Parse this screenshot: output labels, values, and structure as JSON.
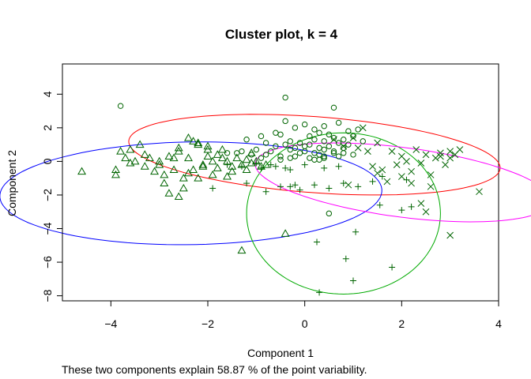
{
  "chart_data": {
    "type": "scatter",
    "title": "Cluster plot, k = 4",
    "xlabel": "Component 1",
    "ylabel": "Component 2",
    "footnote": "These two components explain 58.87 % of the point variability.",
    "xlim": [
      -5.0,
      4.0
    ],
    "ylim": [
      -8.3,
      5.8
    ],
    "xticks": [
      -4,
      -2,
      0,
      2,
      4
    ],
    "yticks": [
      4,
      2,
      0,
      -2,
      -4,
      -6,
      -8
    ],
    "point_color": "#006400",
    "legend": "none",
    "grid": false,
    "ellipses": [
      {
        "cluster": 1,
        "color": "#ff0000",
        "center": [
          0.2,
          0.4
        ],
        "semi_axes": [
          3.95,
          2.2
        ],
        "rotation_deg": -17
      },
      {
        "cluster": 2,
        "color": "#0000ff",
        "center": [
          -2.35,
          -1.9
        ],
        "semi_axes": [
          3.95,
          3.05
        ],
        "rotation_deg": 6
      },
      {
        "cluster": 3,
        "color": "#00aa00",
        "center": [
          0.8,
          -3.1
        ],
        "semi_axes": [
          2.0,
          4.8
        ],
        "rotation_deg": 0
      },
      {
        "cluster": 4,
        "color": "#ff00ff",
        "center": [
          2.03,
          -1.25
        ],
        "semi_axes": [
          1.9,
          3.35
        ],
        "rotation_deg": 60
      }
    ],
    "series": [
      {
        "cluster": 1,
        "marker": "circle",
        "x": [
          -3.8,
          -0.4,
          0.6,
          0.5,
          -0.4,
          -0.2,
          0.0,
          0.2,
          0.4,
          0.7,
          -0.6,
          -0.9,
          -1.2,
          -0.5,
          0.1,
          0.3,
          0.5,
          0.9,
          1.1,
          -0.3,
          -0.1,
          0.2,
          0.4,
          0.6,
          0.8,
          1.0,
          -0.8,
          -0.6,
          -0.4,
          -0.2,
          0.0,
          0.1,
          0.3,
          0.5,
          0.7,
          0.9,
          1.2,
          -1.0,
          -0.7,
          -0.3,
          0.0,
          0.2,
          0.4,
          0.6,
          0.8,
          -1.4,
          -1.1,
          -0.8,
          -0.5,
          -0.1,
          0.3,
          0.6,
          -0.9,
          -0.2,
          0.1,
          0.4,
          0.7,
          1.0,
          0.2,
          0.4,
          -0.5,
          -0.3,
          -1.6,
          -1.3,
          0.8,
          0.3
        ],
        "y": [
          3.3,
          3.8,
          3.2,
          -3.1,
          2.4,
          2.0,
          2.2,
          1.9,
          2.1,
          2.3,
          1.7,
          1.5,
          1.3,
          1.6,
          1.5,
          1.7,
          1.6,
          1.8,
          1.9,
          1.2,
          1.1,
          1.3,
          1.2,
          1.4,
          1.3,
          1.5,
          1.1,
          0.9,
          1.0,
          0.8,
          0.9,
          1.0,
          0.8,
          0.9,
          1.1,
          1.0,
          1.2,
          0.7,
          0.6,
          0.7,
          0.6,
          0.5,
          0.7,
          0.6,
          0.8,
          0.5,
          0.4,
          0.4,
          0.3,
          0.5,
          0.4,
          0.5,
          0.2,
          0.3,
          0.2,
          0.3,
          0.3,
          0.4,
          0.1,
          0.2,
          0.1,
          0.2,
          0.5,
          0.6,
          0.5,
          0.1
        ]
      },
      {
        "cluster": 2,
        "marker": "triangle",
        "x": [
          -4.6,
          -3.9,
          -3.8,
          -3.7,
          -3.6,
          -3.5,
          -3.4,
          -3.3,
          -3.2,
          -3.1,
          -3.0,
          -2.9,
          -2.8,
          -2.7,
          -2.6,
          -2.5,
          -2.4,
          -2.3,
          -2.2,
          -2.1,
          -2.0,
          -1.9,
          -1.8,
          -1.7,
          -1.6,
          -1.5,
          -1.4,
          -1.3,
          -1.2,
          -1.1,
          -1.0,
          -0.9,
          -0.8,
          -3.9,
          -3.6,
          -3.3,
          -3.0,
          -2.7,
          -2.4,
          -2.1,
          -1.8,
          -1.5,
          -1.2,
          -2.9,
          -2.5,
          -2.2,
          -1.9,
          -1.6,
          -2.6,
          -2.3,
          -2.0,
          -1.7,
          -2.6,
          -2.8,
          -0.4,
          -1.3,
          -2.4,
          -2.2,
          -2.0,
          -1.1
        ],
        "y": [
          -0.6,
          -0.8,
          0.6,
          0.2,
          0.7,
          0.0,
          1.0,
          -0.3,
          0.2,
          -0.6,
          0.0,
          -0.8,
          0.3,
          -0.5,
          0.6,
          -1.0,
          0.2,
          -0.5,
          1.0,
          -0.2,
          0.3,
          0.0,
          -0.4,
          0.2,
          0.0,
          -0.3,
          0.2,
          -0.2,
          0.1,
          -0.1,
          0.0,
          -0.3,
          -0.2,
          -0.5,
          -0.1,
          0.4,
          -0.2,
          0.2,
          -0.7,
          -0.3,
          0.4,
          -0.6,
          -0.5,
          -1.3,
          -1.6,
          -1.0,
          -0.8,
          -0.9,
          0.8,
          1.2,
          0.9,
          0.7,
          -2.1,
          -1.9,
          -4.3,
          -5.3,
          1.4,
          1.1,
          0.7,
          0.5
        ]
      },
      {
        "cluster": 3,
        "marker": "plus",
        "x": [
          0.3,
          0.25,
          0.85,
          1.0,
          1.05,
          1.8,
          1.55,
          2.0,
          2.2,
          -0.3,
          -1.2,
          -0.5,
          -0.1,
          0.2,
          0.5,
          0.8,
          1.1,
          1.4,
          -0.9,
          -0.6,
          -0.3,
          0.0,
          0.4,
          0.7,
          -1.6,
          -1.3,
          -1.0,
          -0.7,
          -0.4,
          -1.9,
          -0.8,
          -0.2,
          1.6,
          2.1
        ],
        "y": [
          -7.8,
          -4.8,
          -5.8,
          -7.1,
          -4.2,
          -6.3,
          -2.6,
          -2.9,
          -2.7,
          -1.5,
          -1.3,
          -1.5,
          -1.7,
          -1.4,
          -1.6,
          -1.3,
          -1.5,
          -1.2,
          -0.4,
          -0.3,
          -0.5,
          -0.2,
          -0.4,
          -0.3,
          -0.2,
          -0.3,
          -0.1,
          -0.2,
          -0.4,
          -1.6,
          -1.8,
          -1.4,
          -0.9,
          -1.1
        ]
      },
      {
        "cluster": 4,
        "marker": "cross",
        "x": [
          3.6,
          3.0,
          2.6,
          2.5,
          2.4,
          2.6,
          2.2,
          1.0,
          1.2,
          1.5,
          1.8,
          2.0,
          2.3,
          2.5,
          2.8,
          3.0,
          3.1,
          2.7,
          2.4,
          2.1,
          1.9,
          1.6,
          1.4,
          0.6,
          0.8,
          1.1,
          1.3,
          2.9,
          3.2,
          2.2,
          2.0,
          1.7,
          0.9,
          1.5,
          2.8,
          3.0
        ],
        "y": [
          -1.8,
          -4.4,
          -1.5,
          -3.0,
          -2.5,
          -0.8,
          -1.3,
          1.4,
          2.0,
          1.1,
          0.6,
          0.3,
          0.7,
          0.4,
          0.5,
          0.6,
          0.4,
          0.2,
          -0.1,
          0.0,
          -0.2,
          -0.5,
          -0.3,
          1.3,
          0.9,
          0.8,
          0.6,
          -0.2,
          0.7,
          -0.6,
          -0.9,
          -1.2,
          -1.4,
          -0.7,
          0.3,
          0.2
        ]
      }
    ]
  }
}
